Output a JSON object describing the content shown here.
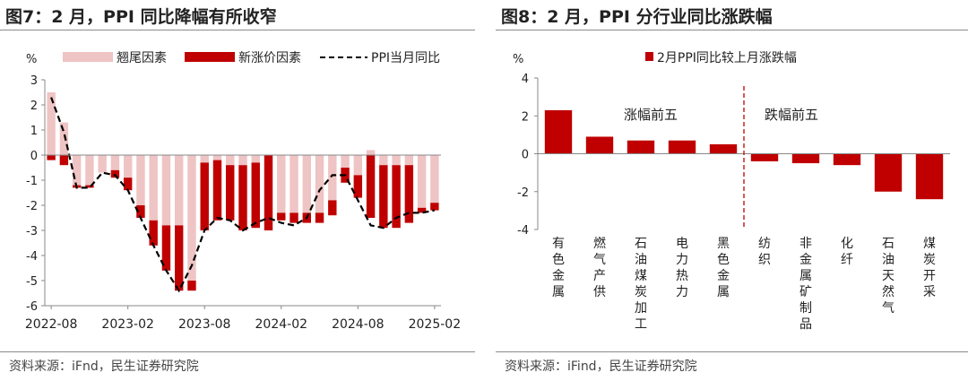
{
  "figures": [
    {
      "title": "图7：2 月，PPI 同比降幅有所收窄",
      "source": "资料来源：iFnd，民生证券研究院",
      "unit": "%",
      "legend": [
        "翘尾因素",
        "新涨价因素",
        "PPI当月同比"
      ]
    },
    {
      "title": "图8：2 月，PPI 分行业同比涨跌幅",
      "source": "资料来源：iFind，民生证券研究院",
      "unit": "%",
      "legend": [
        "2月PPI同比较上月涨跌幅"
      ],
      "annotations": [
        "涨幅前五",
        "跌幅前五"
      ]
    }
  ],
  "chart_data": [
    {
      "type": "bar",
      "stacked": true,
      "title": "图7：2 月，PPI 同比降幅有所收窄",
      "ylabel": "%",
      "ylim": [
        -6,
        3
      ],
      "yticks": [
        3,
        2,
        1,
        0,
        -1,
        -2,
        -3,
        -4,
        -5,
        -6
      ],
      "x_tick_labels": [
        "2022-08",
        "2023-02",
        "2023-08",
        "2024-02",
        "2024-08",
        "2025-02"
      ],
      "x_tick_indices": [
        0,
        6,
        12,
        18,
        24,
        30
      ],
      "categories": [
        "2022-08",
        "2022-09",
        "2022-10",
        "2022-11",
        "2022-12",
        "2023-01",
        "2023-02",
        "2023-03",
        "2023-04",
        "2023-05",
        "2023-06",
        "2023-07",
        "2023-08",
        "2023-09",
        "2023-10",
        "2023-11",
        "2023-12",
        "2024-01",
        "2024-02",
        "2024-03",
        "2024-04",
        "2024-05",
        "2024-06",
        "2024-07",
        "2024-08",
        "2024-09",
        "2024-10",
        "2024-11",
        "2024-12",
        "2025-01",
        "2025-02"
      ],
      "series": [
        {
          "name": "翘尾因素",
          "kind": "bar",
          "values": [
            2.5,
            1.3,
            -1.2,
            -1.2,
            -0.7,
            -0.6,
            -0.9,
            -2.0,
            -2.6,
            -2.8,
            -2.8,
            -5.0,
            -0.3,
            -0.2,
            -0.4,
            -0.4,
            -0.3,
            0.0,
            -2.3,
            -2.3,
            -2.3,
            -2.3,
            -1.8,
            -0.5,
            -0.8,
            0.2,
            -0.4,
            -0.4,
            -0.4,
            -2.1,
            -1.9
          ]
        },
        {
          "name": "新涨价因素",
          "kind": "bar",
          "values": [
            -0.2,
            -0.4,
            -0.1,
            -0.1,
            0.0,
            -0.3,
            -0.5,
            -0.5,
            -1.0,
            -1.8,
            -2.6,
            -0.4,
            -2.7,
            -2.4,
            -2.2,
            -2.6,
            -2.6,
            -3.0,
            -0.3,
            -0.4,
            -0.4,
            -0.4,
            -0.6,
            -0.6,
            -0.9,
            -2.5,
            -2.5,
            -2.5,
            -2.3,
            -0.2,
            -0.3
          ]
        },
        {
          "name": "PPI当月同比",
          "kind": "line",
          "values": [
            2.3,
            0.9,
            -1.3,
            -1.3,
            -0.7,
            -0.8,
            -1.4,
            -2.5,
            -3.6,
            -4.6,
            -5.4,
            -4.4,
            -3.0,
            -2.5,
            -2.6,
            -3.0,
            -2.7,
            -2.5,
            -2.7,
            -2.8,
            -2.5,
            -1.4,
            -0.8,
            -0.8,
            -1.8,
            -2.8,
            -2.9,
            -2.5,
            -2.3,
            -2.3,
            -2.2
          ]
        }
      ]
    },
    {
      "type": "bar",
      "title": "图8：2 月，PPI 分行业同比涨跌幅",
      "ylabel": "%",
      "ylim": [
        -4,
        4
      ],
      "yticks": [
        4,
        2,
        0,
        -2,
        -4
      ],
      "categories": [
        "有色金属",
        "燃气产供",
        "石油煤炭加工",
        "电力热力",
        "黑色金属",
        "纺织",
        "非金属矿制品",
        "化纤",
        "石油天然气",
        "煤炭开采"
      ],
      "series": [
        {
          "name": "2月PPI同比较上月涨跌幅",
          "values": [
            2.3,
            0.9,
            0.7,
            0.7,
            0.5,
            -0.4,
            -0.5,
            -0.6,
            -2.0,
            -2.4
          ]
        }
      ],
      "annotations": [
        "涨幅前五",
        "跌幅前五"
      ]
    }
  ],
  "colors": {
    "carry_over": "#efc4c4",
    "new_price": "#c00000",
    "ppi_line": "#000000",
    "industry_bar": "#c00000",
    "divider": "#c00000",
    "axis": "#888888"
  }
}
